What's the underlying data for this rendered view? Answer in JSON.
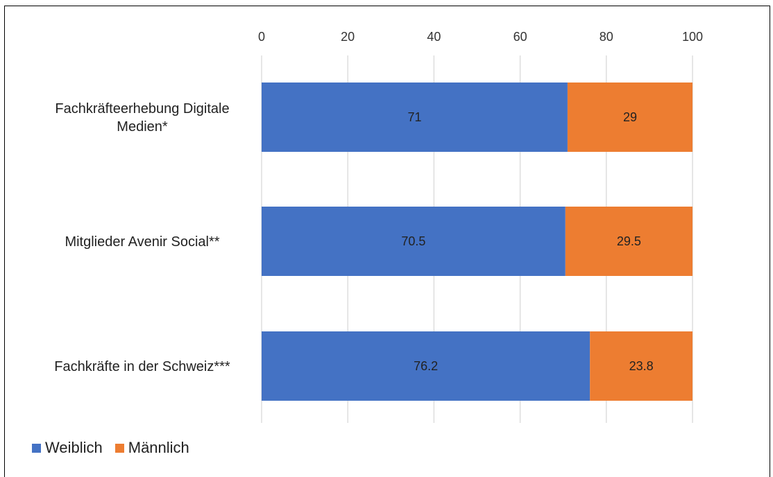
{
  "chart_data": {
    "type": "bar",
    "orientation": "horizontal",
    "stacked": true,
    "categories": [
      "Fachkräfteerhebung Digitale Medien*",
      "Mitglieder Avenir Social**",
      "Fachkräfte in der Schweiz***"
    ],
    "category_lines": [
      [
        "Fachkräfteerhebung Digitale",
        "Medien*"
      ],
      [
        "Mitglieder Avenir Social**"
      ],
      [
        "Fachkräfte in der Schweiz***"
      ]
    ],
    "series": [
      {
        "name": "Weiblich",
        "values": [
          71,
          70.5,
          76.2
        ],
        "labels": [
          "71",
          "70.5",
          "76.2"
        ],
        "color": "#4472C4"
      },
      {
        "name": "Männlich",
        "values": [
          29,
          29.5,
          23.8
        ],
        "labels": [
          "29",
          "29.5",
          "23.8"
        ],
        "color": "#ED7D31"
      }
    ],
    "x_ticks": [
      "0",
      "20",
      "40",
      "60",
      "80",
      "100"
    ],
    "xlim": [
      0,
      100
    ],
    "axis_position": "top",
    "grid": true,
    "legend_position": "bottom-left",
    "title": "",
    "xlabel": "",
    "ylabel": ""
  }
}
